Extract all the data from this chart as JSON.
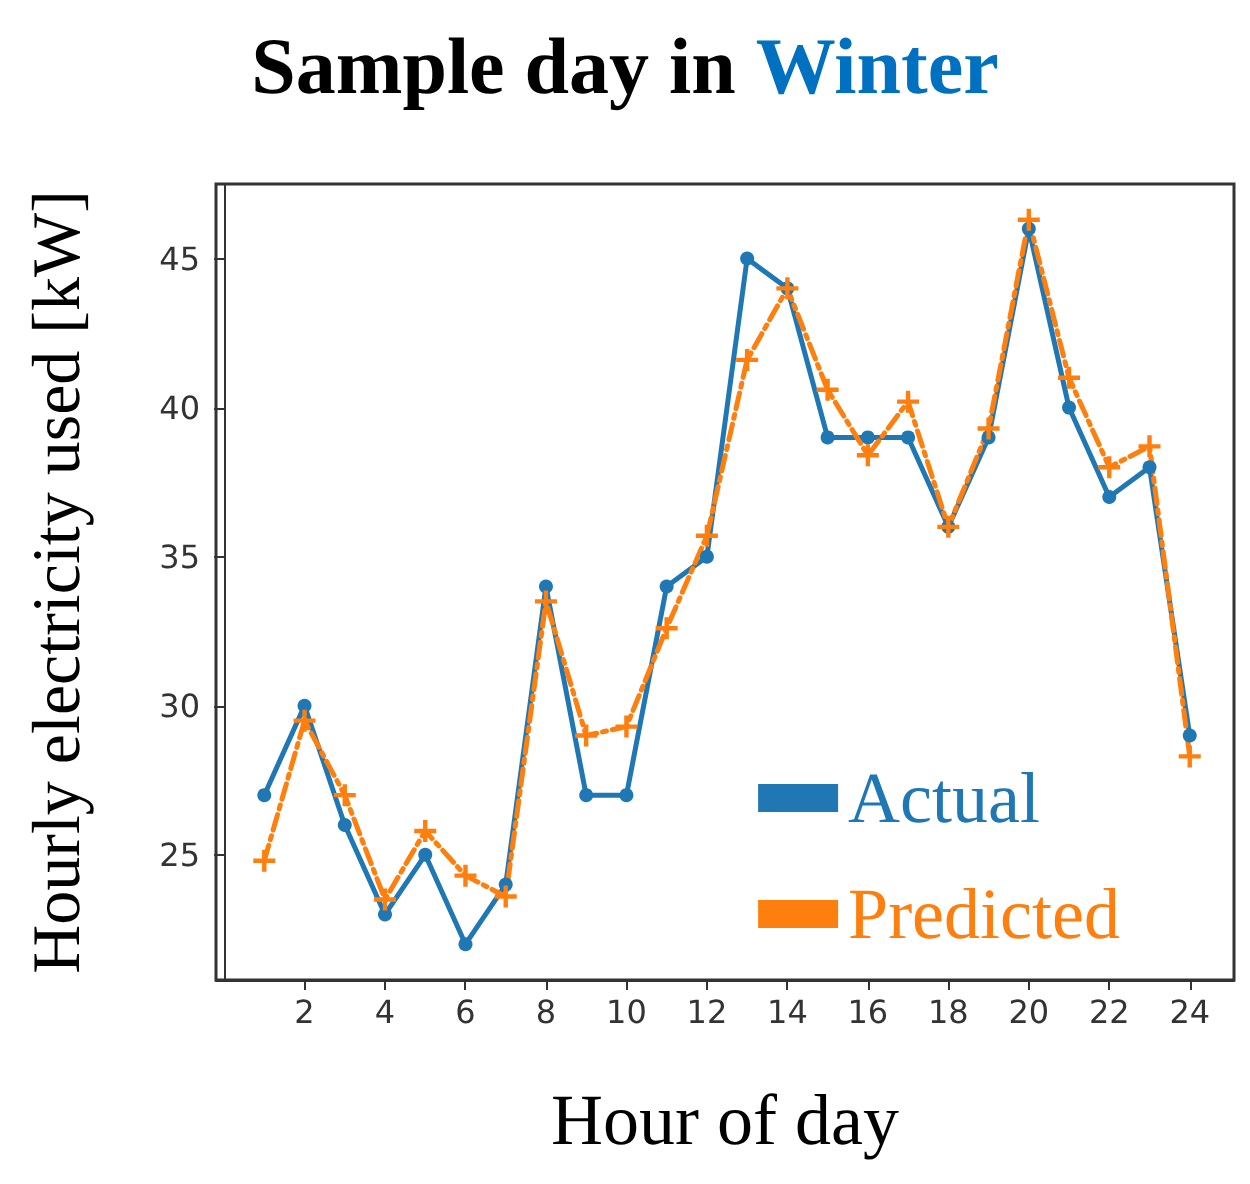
{
  "chart_data": {
    "type": "line",
    "title": "Sample day in Winter",
    "xlabel": "Hour of day",
    "ylabel": "Hourly electricity used [kW]",
    "x": [
      1,
      2,
      3,
      4,
      5,
      6,
      7,
      8,
      9,
      10,
      11,
      12,
      13,
      14,
      15,
      16,
      17,
      18,
      19,
      20,
      21,
      22,
      23,
      24
    ],
    "series": [
      {
        "name": "Actual",
        "color": "#1f77b4",
        "marker": "circle",
        "line_style": "solid",
        "values": [
          27,
          30,
          26,
          23,
          25,
          22,
          24,
          34,
          27,
          27,
          34,
          35,
          45,
          44,
          39,
          39,
          39,
          36,
          39,
          46,
          40,
          37,
          38,
          29
        ]
      },
      {
        "name": "Predicted",
        "color": "#ff7f0e",
        "marker": "cross",
        "line_style": "dashdot",
        "values": [
          24.8,
          29.5,
          27,
          23.5,
          25.8,
          24.3,
          23.6,
          33.5,
          29,
          29.3,
          32.6,
          35.7,
          41.6,
          44,
          40.6,
          38.4,
          40.2,
          36,
          39.3,
          46.3,
          41,
          38,
          38.7,
          28.3
        ]
      }
    ],
    "xlim": [
      -0.2,
      25.1
    ],
    "xticks": [
      2,
      4,
      6,
      8,
      10,
      12,
      14,
      16,
      18,
      20,
      22,
      24
    ],
    "ylim": [
      20.8,
      47.5
    ],
    "yticks": [
      25,
      30,
      35,
      40,
      45
    ],
    "grid": false,
    "legend": "bottom right"
  }
}
